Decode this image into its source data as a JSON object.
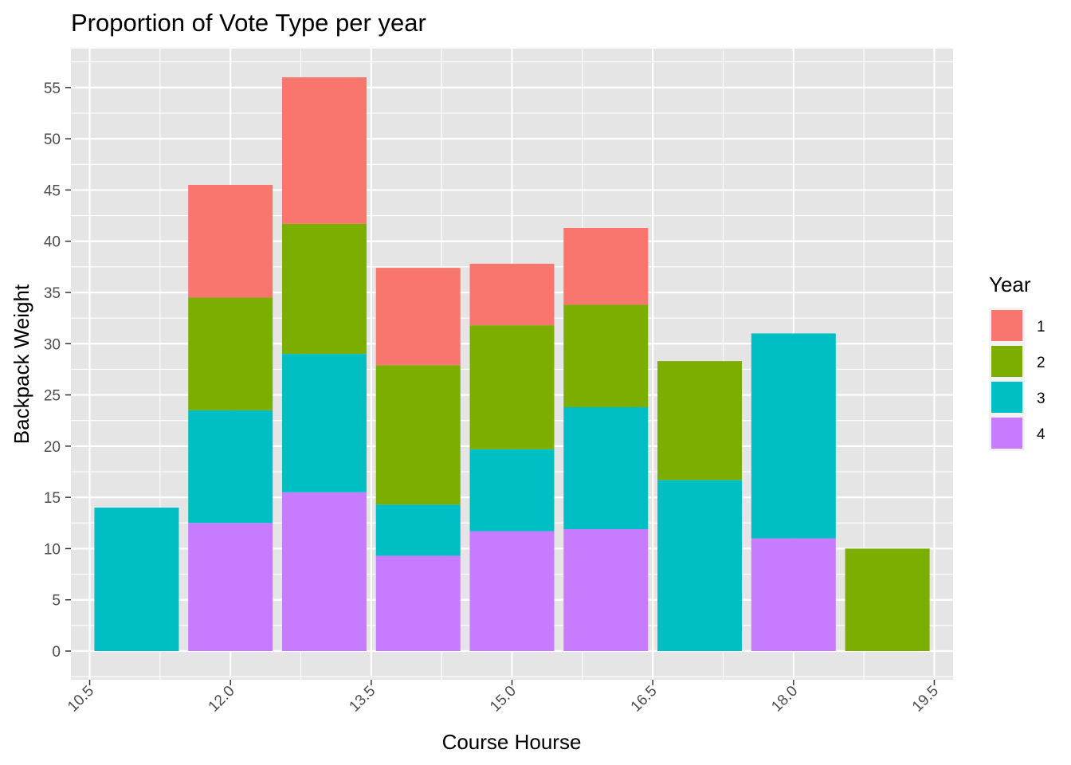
{
  "chart_data": {
    "type": "bar",
    "stacked": true,
    "title": "Proportion of Vote Type per year",
    "xlabel": "Course Hourse",
    "ylabel": "Backpack Weight",
    "x": [
      11,
      12,
      13,
      14,
      15,
      16,
      17,
      18,
      19
    ],
    "bar_width": 0.9,
    "xlim": [
      10.3,
      19.7
    ],
    "ylim": [
      -2.8,
      58.8
    ],
    "x_ticks": [
      10.5,
      12.0,
      13.5,
      15.0,
      16.5,
      18.0,
      19.5
    ],
    "x_tick_labels": [
      "10.5",
      "12.0",
      "13.5",
      "15.0",
      "16.5",
      "18.0",
      "19.5"
    ],
    "x_tick_rotation": 45,
    "y_ticks": [
      0,
      5,
      10,
      15,
      20,
      25,
      30,
      35,
      40,
      45,
      50,
      55
    ],
    "y_tick_labels": [
      "0",
      "5",
      "10",
      "15",
      "20",
      "25",
      "30",
      "35",
      "40",
      "45",
      "50",
      "55"
    ],
    "stack_order": [
      "4",
      "3",
      "2",
      "1"
    ],
    "series": [
      {
        "name": "1",
        "color": "#F8766D",
        "values": [
          0,
          11,
          14.3,
          9.5,
          6,
          7.5,
          0,
          0,
          0
        ]
      },
      {
        "name": "2",
        "color": "#7CAE00",
        "values": [
          0,
          11,
          12.7,
          13.6,
          12.1,
          10,
          11.6,
          0,
          10
        ]
      },
      {
        "name": "3",
        "color": "#00BFC4",
        "values": [
          14,
          11,
          13.5,
          5,
          8,
          11.9,
          16.7,
          20,
          0
        ]
      },
      {
        "name": "4",
        "color": "#C77CFF",
        "values": [
          0,
          12.5,
          15.5,
          9.3,
          11.7,
          11.9,
          0,
          11,
          0
        ]
      }
    ],
    "grid": true,
    "panel_background": "#E5E5E5",
    "grid_color": "#FFFFFF",
    "legend": {
      "title": "Year",
      "position": "right",
      "entries": [
        "1",
        "2",
        "3",
        "4"
      ]
    }
  }
}
